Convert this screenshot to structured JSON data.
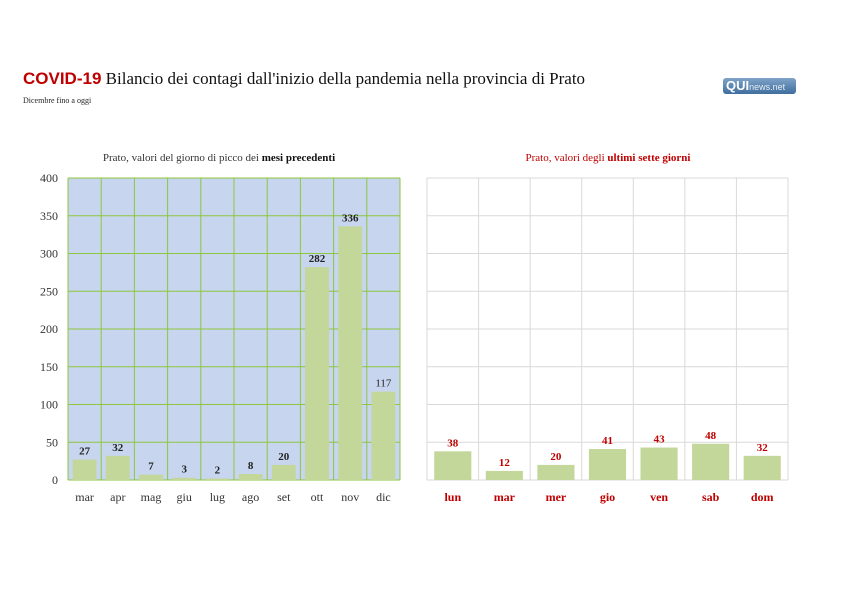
{
  "header": {
    "accent": "COVID-19",
    "title": "Bilancio dei contagi dall'inizio della pandemia nella provincia di Prato",
    "subtitle": "Dicembre fino a oggi",
    "logo_main": "QUI",
    "logo_sub": "news",
    "logo_tld": ".net"
  },
  "colors": {
    "accent": "#c00000",
    "bar": "#c4d79b",
    "panel_bg": "#c7d6ee",
    "grid_left": "#8dc63f",
    "grid_right": "#d9d9d9"
  },
  "chart_data": [
    {
      "type": "bar",
      "title_prefix": "Prato, valori del giorno di picco dei ",
      "title_bold": "mesi precedenti",
      "categories": [
        "mar",
        "apr",
        "mag",
        "giu",
        "lug",
        "ago",
        "set",
        "ott",
        "nov",
        "dic"
      ],
      "values": [
        27,
        32,
        7,
        3,
        2,
        8,
        20,
        282,
        336,
        117
      ],
      "labels": [
        "27",
        "32",
        "7",
        "3",
        "2",
        "8",
        "20",
        "282",
        "336",
        "117"
      ],
      "ylim": [
        0,
        400
      ],
      "yticks": [
        "0",
        "50",
        "100",
        "150",
        "200",
        "250",
        "300",
        "350",
        "400"
      ],
      "grid": true
    },
    {
      "type": "bar",
      "title_prefix": "Prato, valori degli ",
      "title_bold": "ultimi sette giorni",
      "categories": [
        "lun",
        "mar",
        "mer",
        "gio",
        "ven",
        "sab",
        "dom"
      ],
      "values": [
        38,
        12,
        20,
        41,
        43,
        48,
        32
      ],
      "labels": [
        "38",
        "12",
        "20",
        "41",
        "43",
        "48",
        "32"
      ],
      "ylim": [
        0,
        400
      ],
      "grid": true
    }
  ]
}
